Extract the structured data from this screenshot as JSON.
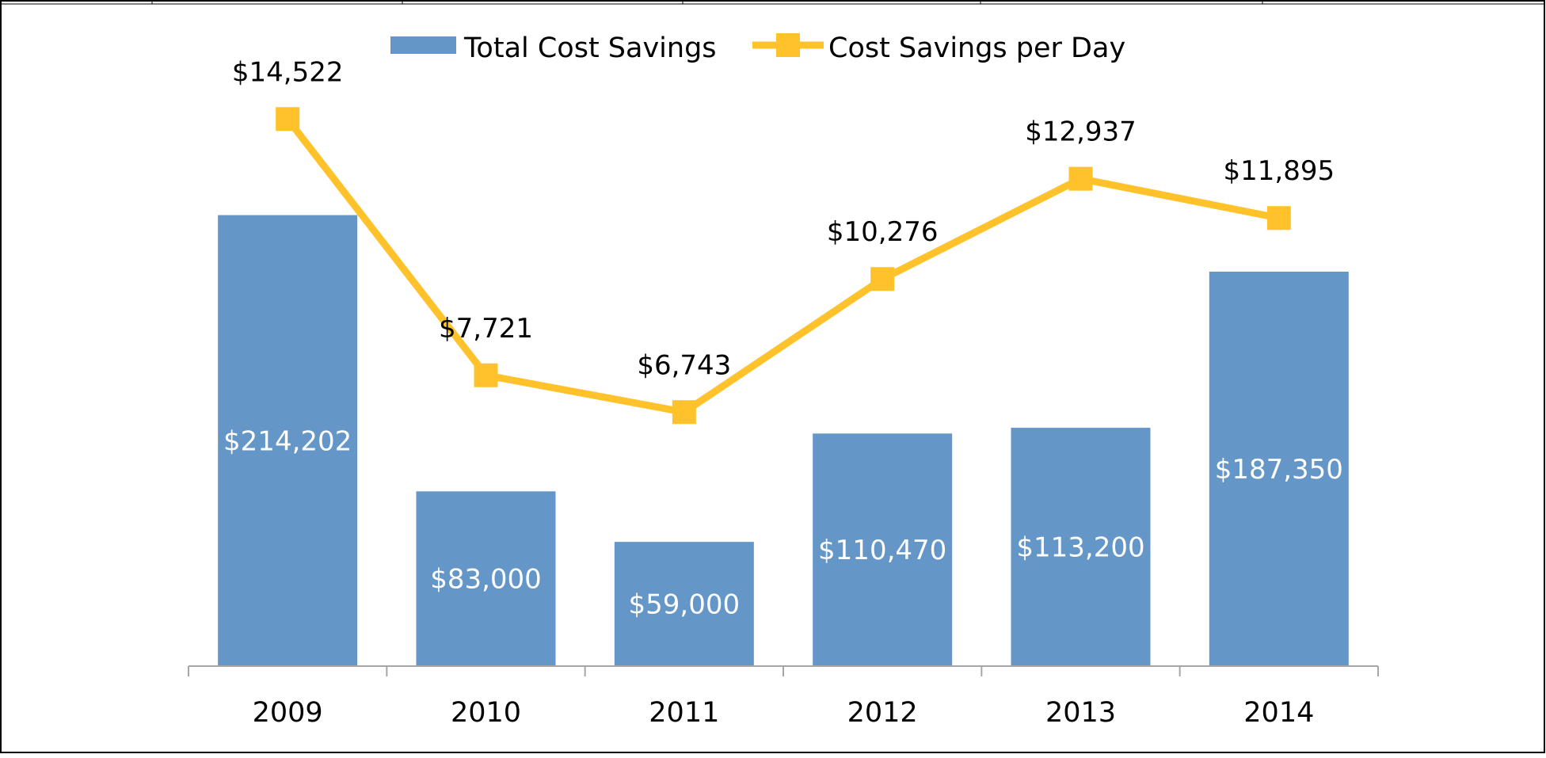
{
  "chart_data": {
    "type": "bar",
    "categories": [
      "2009",
      "2010",
      "2011",
      "2012",
      "2013",
      "2014"
    ],
    "series": [
      {
        "name": "Total Cost Savings",
        "type": "bar",
        "values": [
          214202,
          83000,
          59000,
          110470,
          113200,
          187350
        ],
        "labels": [
          "$214,202",
          "$83,000",
          "$59,000",
          "$110,470",
          "$113,200",
          "$187,350"
        ],
        "color": "#6496C8"
      },
      {
        "name": "Cost Savings per Day",
        "type": "line",
        "marker": "square",
        "values": [
          14522,
          7721,
          6743,
          10276,
          12937,
          11895
        ],
        "labels": [
          "$14,522",
          "$7,721",
          "$6,743",
          "$10,276",
          "$12,937",
          "$11,895"
        ],
        "color": "#FFC22B"
      }
    ],
    "legend_position": "top-center",
    "grid": false,
    "y_axis_visible": false,
    "secondary_axis_unlabeled": true
  }
}
